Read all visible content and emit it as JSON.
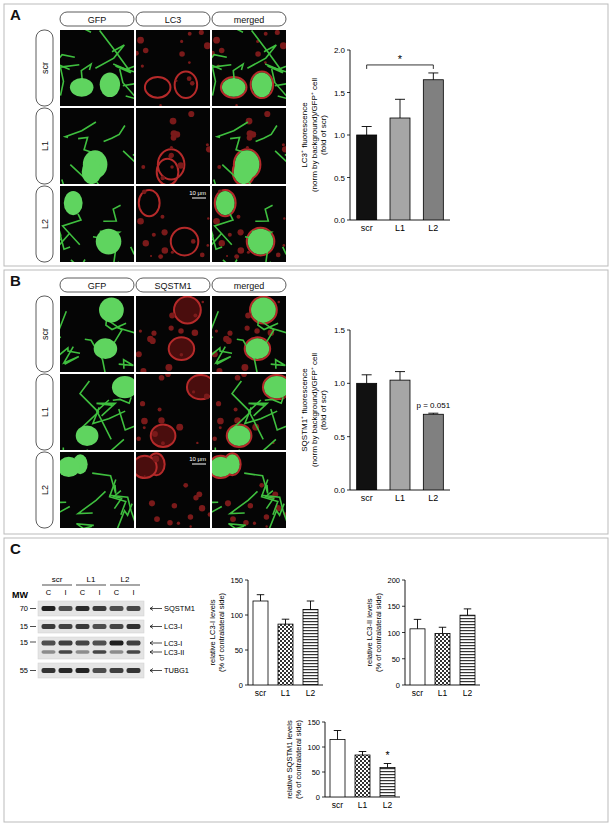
{
  "panels": [
    {
      "label": "A",
      "image_headers": [
        "GFP",
        "LC3",
        "merged"
      ],
      "row_labels": [
        "scr",
        "L1",
        "L2"
      ],
      "scale_bar": "10 μm"
    },
    {
      "label": "B",
      "image_headers": [
        "GFP",
        "SQSTM1",
        "merged"
      ],
      "row_labels": [
        "scr",
        "L1",
        "L2"
      ],
      "scale_bar": "10 μm"
    },
    {
      "label": "C",
      "blot": {
        "mw_title": "MW",
        "groups": [
          "scr",
          "L1",
          "L2"
        ],
        "lanes": [
          "C",
          "I",
          "C",
          "I",
          "C",
          "I"
        ],
        "rows": [
          {
            "marker": 70,
            "labels": [
              "SQSTM1"
            ]
          },
          {
            "marker": 15,
            "labels": [
              "LC3-I"
            ]
          },
          {
            "marker": 15,
            "labels": [
              "LC3-I",
              "LC3-II"
            ]
          },
          {
            "marker": 55,
            "labels": [
              "TUBG1"
            ]
          }
        ]
      }
    }
  ],
  "chart_data": [
    {
      "type": "bar",
      "ylabel": [
        "LC3⁺ fluorescence",
        "(norm by background)/GFP⁺ cell",
        "(fold of scr)"
      ],
      "categories": [
        "scr",
        "L1",
        "L2"
      ],
      "values": [
        1.0,
        1.2,
        1.65
      ],
      "errors": [
        0.1,
        0.22,
        0.08
      ],
      "colors": [
        "#111111",
        "#a6a6a6",
        "#808080"
      ],
      "ylim": [
        0,
        2.0
      ],
      "yticks": [
        {
          "value": 0,
          "label": "0.0"
        },
        {
          "value": 0.5,
          "label": "0.5"
        },
        {
          "value": 1.0,
          "label": "1.0"
        },
        {
          "value": 1.5,
          "label": "1.5"
        },
        {
          "value": 2.0,
          "label": "2.0"
        }
      ],
      "annotations": [
        {
          "text": "*",
          "between": [
            "scr",
            "L2"
          ]
        }
      ]
    },
    {
      "type": "bar",
      "ylabel": [
        "SQSTM1⁺ fluorescence",
        "(norm by background)/GFP⁺ cell",
        "(fold of scr)"
      ],
      "categories": [
        "scr",
        "L1",
        "L2"
      ],
      "values": [
        1.0,
        1.03,
        0.71
      ],
      "errors": [
        0.08,
        0.08,
        0.01
      ],
      "colors": [
        "#111111",
        "#a6a6a6",
        "#808080"
      ],
      "ylim": [
        0,
        1.5
      ],
      "yticks": [
        {
          "value": 0,
          "label": "0.0"
        },
        {
          "value": 0.5,
          "label": "0.5"
        },
        {
          "value": 1.0,
          "label": "1.0"
        },
        {
          "value": 1.5,
          "label": "1.5"
        }
      ],
      "annotations": [
        {
          "text": "p = 0.051",
          "category": "L2"
        }
      ]
    },
    {
      "type": "bar",
      "ylabel": [
        "relative LC3-I levels",
        "(% of contralateral side)"
      ],
      "categories": [
        "scr",
        "L1",
        "L2"
      ],
      "values": [
        120,
        87,
        108
      ],
      "errors": [
        9,
        7,
        12
      ],
      "colors": [
        "#ffffff",
        "#ffffff",
        "#ffffff"
      ],
      "ylim": [
        0,
        150
      ],
      "yticks": [
        0,
        50,
        100,
        150
      ],
      "annotations": []
    },
    {
      "type": "bar",
      "ylabel": [
        "relative LC3-II levels",
        "(% of contralateral side)"
      ],
      "categories": [
        "scr",
        "L1",
        "L2"
      ],
      "values": [
        107,
        98,
        133
      ],
      "errors": [
        18,
        12,
        12
      ],
      "colors": [
        "#ffffff",
        "#ffffff",
        "#ffffff"
      ],
      "ylim": [
        0,
        200
      ],
      "yticks": [
        0,
        50,
        100,
        150,
        200
      ],
      "annotations": []
    },
    {
      "type": "bar",
      "ylabel": [
        "relative SQSTM1 levels",
        "(% of contralateral side)"
      ],
      "categories": [
        "scr",
        "L1",
        "L2"
      ],
      "values": [
        115,
        84,
        59
      ],
      "errors": [
        18,
        7,
        8
      ],
      "colors": [
        "#ffffff",
        "#ffffff",
        "#ffffff"
      ],
      "ylim": [
        0,
        150
      ],
      "yticks": [
        0,
        50,
        100,
        150
      ],
      "annotations": [
        {
          "text": "*",
          "category": "L2"
        }
      ]
    }
  ]
}
